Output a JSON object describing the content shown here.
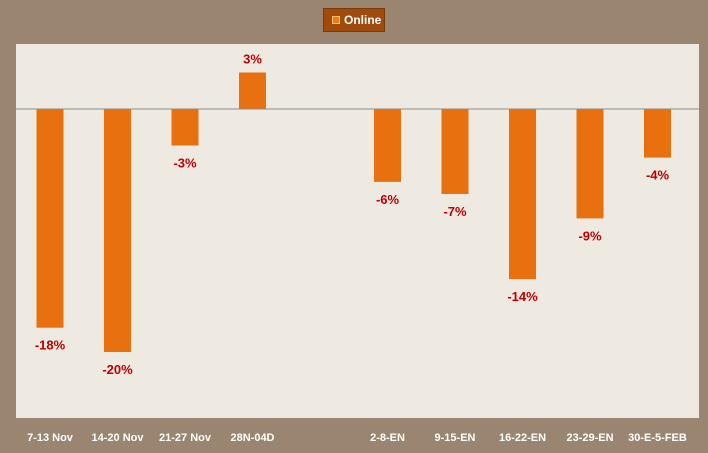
{
  "chart_data": {
    "type": "bar",
    "categories": [
      "7-13 Nov",
      "14-20 Nov",
      "21-27 Nov",
      "28N-04D",
      "",
      "2-8-EN",
      "9-15-EN",
      "16-22-EN",
      "23-29-EN",
      "30-E-5-FEB"
    ],
    "series": [
      {
        "name": "Online",
        "values": [
          -18,
          -20,
          -3,
          3,
          null,
          -6,
          -7,
          -14,
          -9,
          -4
        ],
        "labels": [
          "-18%",
          "-20%",
          "-3%",
          "3%",
          "",
          "-6%",
          "-7%",
          "-14%",
          "-9%",
          "-4%"
        ]
      }
    ],
    "ylim": [
      -25,
      5
    ],
    "grid": false,
    "legend_position": "top-center"
  },
  "colors": {
    "bar": "#e8700f",
    "label": "#c00000",
    "plot_bg": "#eeeae1",
    "frame": "#9a8670",
    "zero_line": "#8c8c8c"
  }
}
